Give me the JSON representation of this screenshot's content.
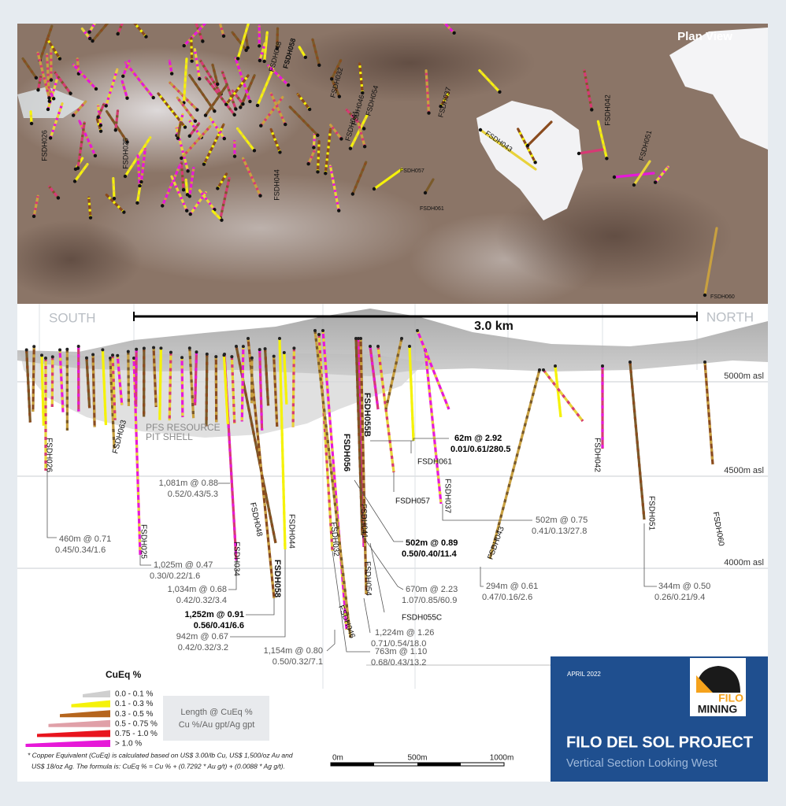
{
  "plan_view": {
    "title": "Plan View",
    "hole_labels": [
      "FSDH026",
      "FSDH025",
      "FSDH048",
      "FSDH058",
      "FSDH044",
      "FSDH032",
      "FSDH046",
      "FSDH041",
      "FSDH054",
      "FSDH037",
      "FSDH057",
      "FSDH061",
      "FSDH043",
      "FSDH042",
      "FSDH051",
      "FSDH060"
    ]
  },
  "section": {
    "south": "SOUTH",
    "north": "NORTH",
    "scale": "3.0 km",
    "elevations": [
      "5000m asl",
      "4500m asl",
      "4000m asl"
    ],
    "pit_shell": [
      "PFS RESOURCE",
      "PIT SHELL"
    ],
    "hole_labels": [
      "FSDH063",
      "FSDH026",
      "FSDH025",
      "FSDH034",
      "FSDH048",
      "FSDH058",
      "FSDH044",
      "FSDH032",
      "FSDH056",
      "FSDH055B",
      "FSDH041",
      "FSDH054",
      "FSDH055C",
      "FSDH046",
      "FSDH061",
      "FSDH057",
      "FSDH037",
      "FSDH043",
      "FSDH042",
      "FSDH051",
      "FSDH060"
    ],
    "intercepts": [
      [
        "62m @ 2.92",
        "0.01/0.61/280.5"
      ],
      [
        "1,081m @ 0.88",
        "0.52/0.43/5.3"
      ],
      [
        "460m @ 0.71",
        "0.45/0.34/1.6"
      ],
      [
        "502m @ 0.89",
        "0.50/0.40/11.4"
      ],
      [
        "502m @ 0.75",
        "0.41/0.13/27.8"
      ],
      [
        "1,025m @ 0.47",
        "0.30/0.22/1.6"
      ],
      [
        "1,034m @ 0.68",
        "0.42/0.32/3.4"
      ],
      [
        "1,252m @ 0.91",
        "0.56/0.41/6.6"
      ],
      [
        "942m @ 0.67",
        "0.42/0.32/3.2"
      ],
      [
        "670m @ 2.23",
        "1.07/0.85/60.9"
      ],
      [
        "294m @ 0.61",
        "0.47/0.16/2.6"
      ],
      [
        "344m @ 0.50",
        "0.26/0.21/9.4"
      ],
      [
        "1,224m @ 1.26",
        "0.71/0.54/18.0"
      ],
      [
        "1,154m @ 0.80",
        "0.50/0.32/7.1"
      ],
      [
        "763m @ 1.10",
        "0.68/0.43/13.2"
      ]
    ]
  },
  "legend": {
    "title": "CuEq %",
    "items": [
      {
        "label": "0.0 - 0.1 %",
        "color": "#cfcfcf"
      },
      {
        "label": "0.1 - 0.3 %",
        "color": "#f5f20a"
      },
      {
        "label": "0.3 - 0.5 %",
        "color": "#b5651d"
      },
      {
        "label": "0.5 - 0.75 %",
        "color": "#e0a0a8"
      },
      {
        "label": "0.75 - 1.0 %",
        "color": "#e8141e"
      },
      {
        "label": "> 1.0 %",
        "color": "#e619d8"
      }
    ],
    "key": [
      "Length @ CuEq %",
      "Cu %/Au gpt/Ag gpt"
    ]
  },
  "footnote": [
    "* Copper Equivalent (CuEq) is calculated based on US$ 3.00/lb Cu, US$ 1,500/oz Au and",
    "US$ 18/oz Ag. The formula is:  CuEq % = Cu % + (0.7292 * Au g/t) + (0.0088 * Ag g/t)."
  ],
  "scale_bar": [
    "0m",
    "500m",
    "1000m"
  ],
  "title_block": {
    "date": "APRIL 2022",
    "title": "FILO DEL SOL PROJECT",
    "subtitle": "Vertical Section Looking West",
    "logo": [
      "FILO",
      "MINING"
    ]
  }
}
